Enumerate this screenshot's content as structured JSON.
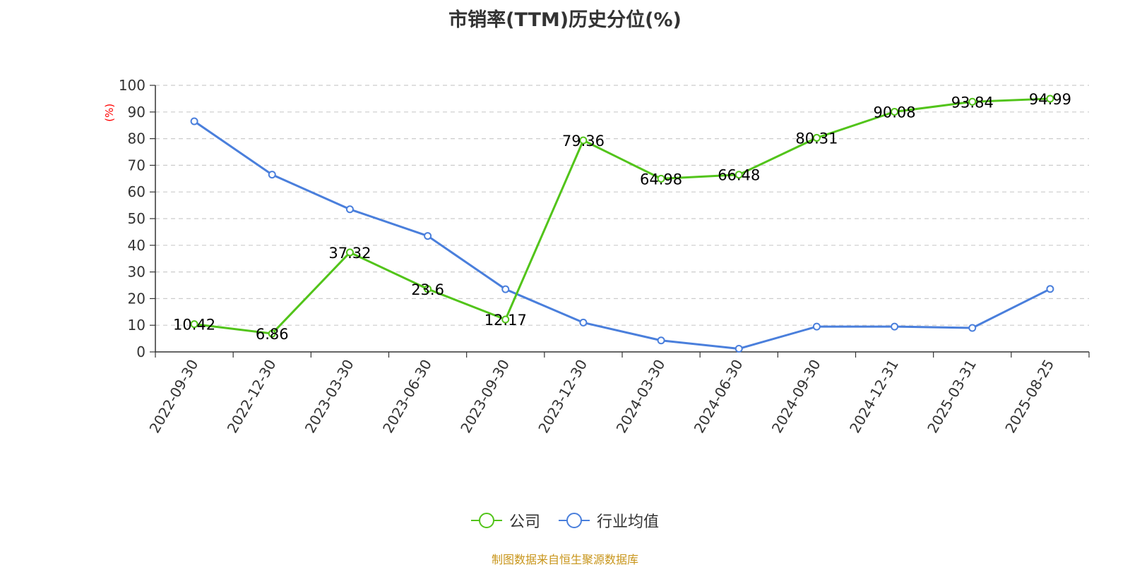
{
  "chart_data": {
    "type": "line",
    "title": "市销率(TTM)历史分位(%)",
    "ylabel": "(%)",
    "xlabel": "",
    "ylim": [
      0,
      100
    ],
    "yticks": [
      0,
      10,
      20,
      30,
      40,
      50,
      60,
      70,
      80,
      90,
      100
    ],
    "grid": true,
    "legend_position": "bottom",
    "categories": [
      "2022-09-30",
      "2022-12-30",
      "2023-03-30",
      "2023-06-30",
      "2023-09-30",
      "2023-12-30",
      "2024-03-30",
      "2024-06-30",
      "2024-09-30",
      "2024-12-31",
      "2025-03-31",
      "2025-08-25"
    ],
    "series": [
      {
        "name": "公司",
        "color": "#52c41a",
        "values": [
          10.42,
          6.86,
          37.32,
          23.6,
          12.17,
          79.36,
          64.98,
          66.48,
          80.31,
          90.08,
          93.84,
          94.99
        ],
        "labels": [
          "10.42",
          "6.86",
          "37.32",
          "23.6",
          "12.17",
          "79.36",
          "64.98",
          "66.48",
          "80.31",
          "90.08",
          "93.84",
          "94.99"
        ]
      },
      {
        "name": "行业均值",
        "color": "#4a7fdc",
        "values": [
          86.5,
          66.5,
          53.5,
          43.5,
          23.5,
          11.0,
          4.3,
          1.2,
          9.5,
          9.5,
          9.0,
          23.6
        ]
      }
    ]
  },
  "footer": {
    "source": "制图数据来自恒生聚源数据库"
  }
}
